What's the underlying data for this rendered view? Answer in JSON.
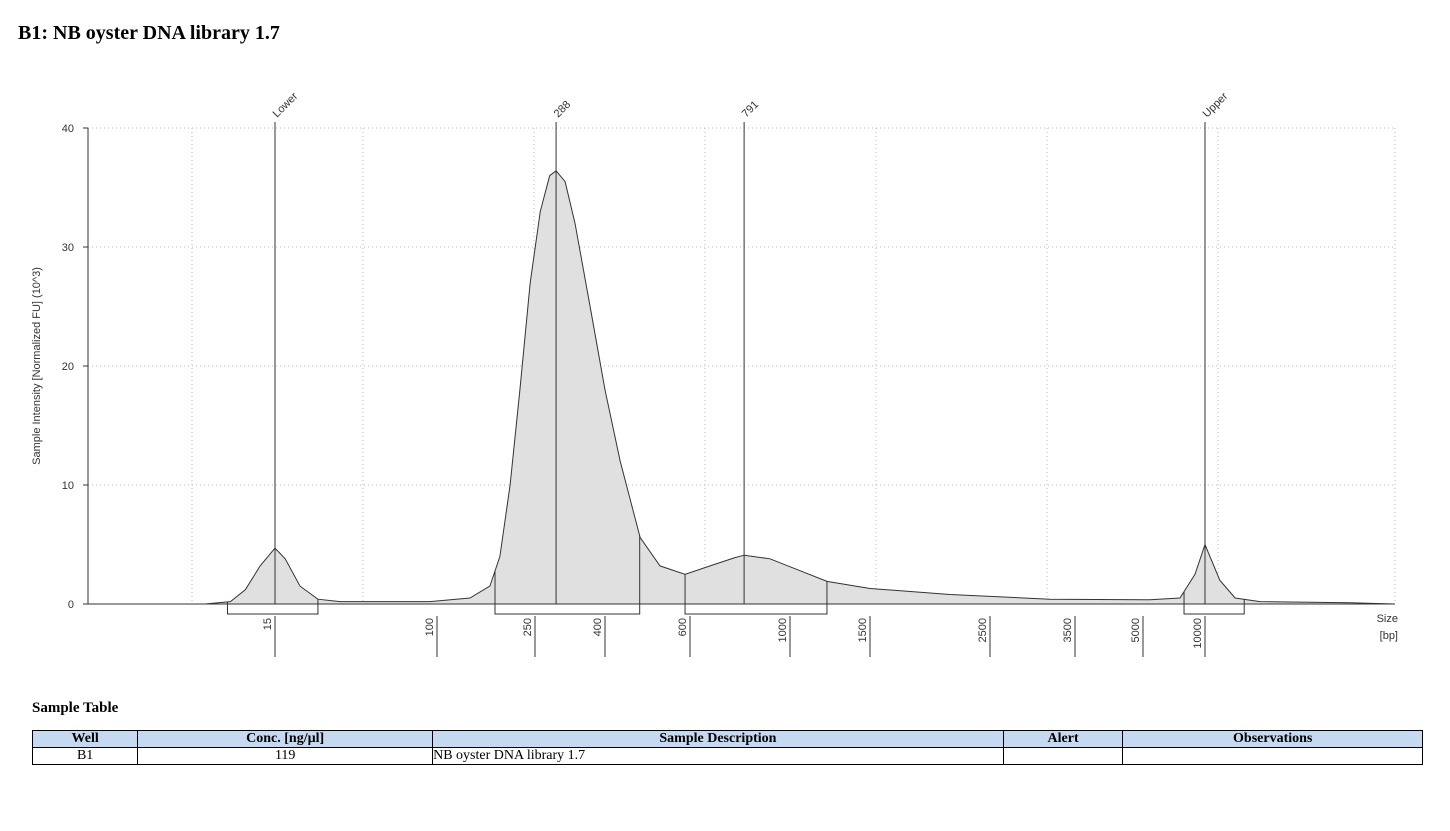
{
  "title": "B1: NB oyster DNA library 1.7",
  "chart_data": {
    "type": "area",
    "y_label": "Sample Intensity [Normalized FU] (10^3)",
    "x_label": "Size",
    "x_unit": "[bp]",
    "x": [
      1.7,
      6.6,
      8.9,
      10.6,
      12.6,
      15,
      16.9,
      20.1,
      24.8,
      32.1,
      92,
      136,
      164,
      180,
      198,
      217,
      239,
      259,
      276,
      288,
      306,
      327,
      362,
      400,
      430,
      473,
      520,
      586,
      665,
      755,
      791,
      903,
      1052,
      1206,
      1500,
      2108,
      3170,
      5410,
      7560,
      8940,
      10000,
      11800,
      14000,
      18500,
      50600,
      83600
    ],
    "values": [
      0,
      0,
      0.2,
      1.2,
      3.2,
      4.7,
      3.8,
      1.5,
      0.4,
      0.2,
      0.2,
      0.5,
      1.5,
      4,
      10,
      18,
      27,
      33,
      36,
      36.4,
      35.5,
      32,
      25,
      18,
      12,
      5.6,
      3.2,
      2.5,
      3.2,
      3.9,
      4.1,
      3.8,
      2.8,
      1.9,
      1.3,
      0.8,
      0.4,
      0.35,
      0.5,
      2.5,
      5,
      2,
      0.5,
      0.2,
      0.1,
      0
    ],
    "color": "#e0e0e0",
    "xlim": [
      1.7,
      83600
    ],
    "xticks": [
      15,
      100,
      250,
      400,
      600,
      1000,
      1500,
      2500,
      3500,
      5000,
      10000
    ],
    "ylim": [
      0,
      40
    ],
    "yticks": [
      0,
      10,
      20,
      30,
      40
    ],
    "grid": true,
    "peaks": [
      {
        "label": "Lower",
        "x": 15
      },
      {
        "label": "288",
        "x": 288
      },
      {
        "label": "791",
        "x": 791
      },
      {
        "label": "Upper",
        "x": 10000
      }
    ],
    "regions": [
      [
        8.6,
        24.8
      ],
      [
        172,
        472
      ],
      [
        586,
        1206
      ],
      [
        7910,
        15500
      ]
    ]
  },
  "table": {
    "title": "Sample Table",
    "columns": [
      "Well",
      "Conc. [ng/µl]",
      "Sample Description",
      "Alert",
      "Observations"
    ],
    "rows": [
      [
        "B1",
        119,
        "NB oyster DNA library 1.7"
      ]
    ]
  }
}
